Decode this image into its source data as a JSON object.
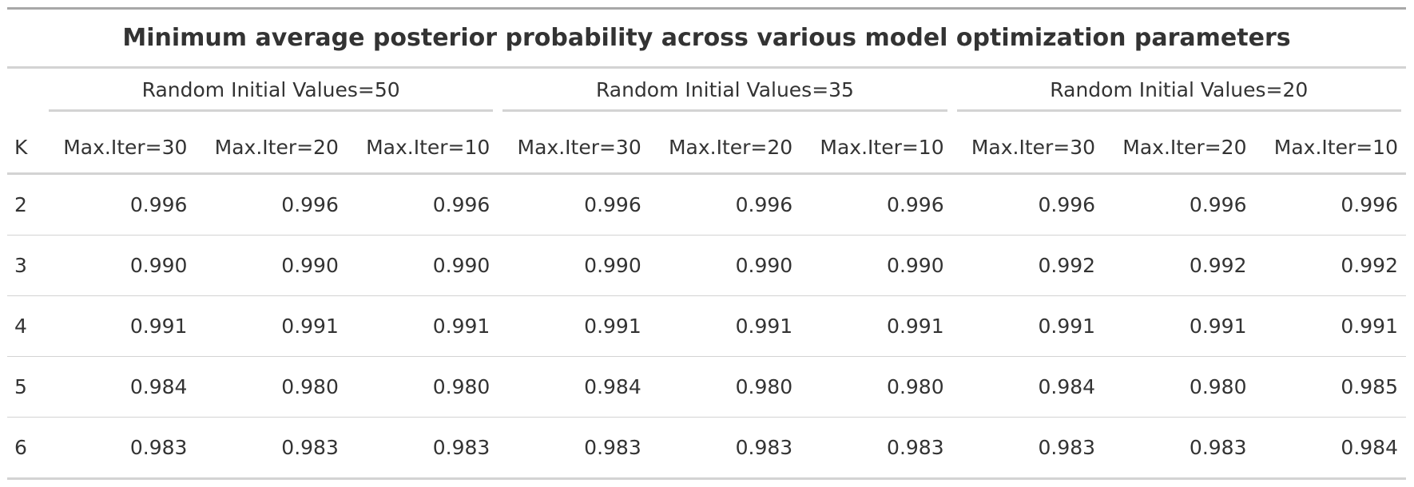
{
  "table": {
    "title": "Minimum average posterior probability across various model optimization parameters",
    "row_header": "K",
    "groups": [
      {
        "label": "Random Initial Values=50",
        "columns": [
          "Max.Iter=30",
          "Max.Iter=20",
          "Max.Iter=10"
        ]
      },
      {
        "label": "Random Initial Values=35",
        "columns": [
          "Max.Iter=30",
          "Max.Iter=20",
          "Max.Iter=10"
        ]
      },
      {
        "label": "Random Initial Values=20",
        "columns": [
          "Max.Iter=30",
          "Max.Iter=20",
          "Max.Iter=10"
        ]
      }
    ],
    "rows": [
      {
        "k": "2",
        "values": [
          "0.996",
          "0.996",
          "0.996",
          "0.996",
          "0.996",
          "0.996",
          "0.996",
          "0.996",
          "0.996"
        ]
      },
      {
        "k": "3",
        "values": [
          "0.990",
          "0.990",
          "0.990",
          "0.990",
          "0.990",
          "0.990",
          "0.992",
          "0.992",
          "0.992"
        ]
      },
      {
        "k": "4",
        "values": [
          "0.991",
          "0.991",
          "0.991",
          "0.991",
          "0.991",
          "0.991",
          "0.991",
          "0.991",
          "0.991"
        ]
      },
      {
        "k": "5",
        "values": [
          "0.984",
          "0.980",
          "0.980",
          "0.984",
          "0.980",
          "0.980",
          "0.984",
          "0.980",
          "0.985"
        ]
      },
      {
        "k": "6",
        "values": [
          "0.983",
          "0.983",
          "0.983",
          "0.983",
          "0.983",
          "0.983",
          "0.983",
          "0.983",
          "0.984"
        ]
      }
    ]
  }
}
